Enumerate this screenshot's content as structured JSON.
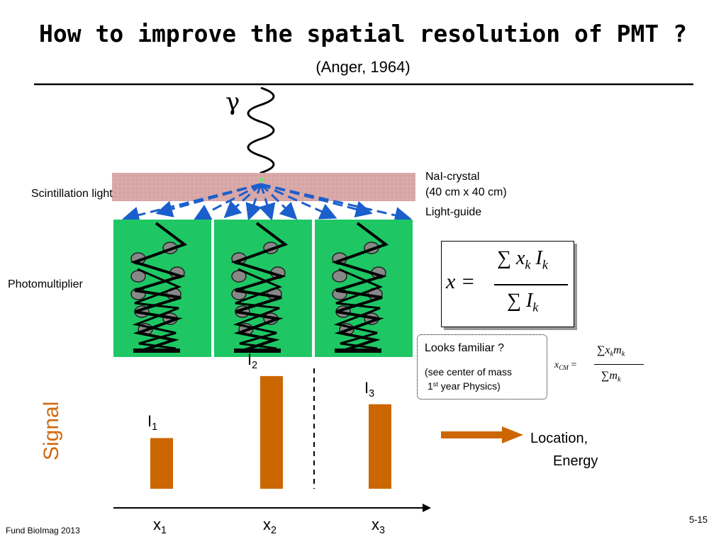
{
  "slide": {
    "title": "How to improve the spatial resolution of PMT ?",
    "subtitle": "(Anger, 1964)",
    "gamma_symbol": "γ",
    "labels": {
      "crystal_name": "NaI-crystal",
      "crystal_size": "(40 cm x 40 cm)",
      "light_guide": "Light-guide",
      "scintillation": "Scintillation light",
      "photomultiplier": "Photomultiplier",
      "signal": "Signal",
      "location": "Location,",
      "energy": "Energy"
    },
    "familiar": {
      "question": "Looks familiar ?",
      "note_line1": "(see center of mass",
      "note_line2_pre": "1",
      "note_line2_sup": "st",
      "note_line2_post": " year Physics)"
    },
    "formula_main": {
      "lhs": "x =",
      "numerator": "∑ x_k I_k",
      "denominator": "∑ I_k"
    },
    "formula_cm": {
      "lhs": "x_CM =",
      "numerator": "∑ x_k m_k",
      "denominator": "∑ m_k"
    },
    "footer": {
      "left": "Fund BioImag 2013",
      "right": "5-15"
    },
    "colors": {
      "pmt_green": "#1ec764",
      "bar_orange": "#cc6600",
      "signal_orange": "#d06a10",
      "crystal_pink": "#d9a8a8",
      "arrow_blue": "#1a5fcc"
    }
  },
  "chart_data": {
    "type": "bar",
    "categories": [
      "x1",
      "x2",
      "x3"
    ],
    "category_labels": [
      {
        "base": "x",
        "sub": "1"
      },
      {
        "base": "x",
        "sub": "2"
      },
      {
        "base": "x",
        "sub": "3"
      }
    ],
    "bar_labels": [
      {
        "base": "I",
        "sub": "1"
      },
      {
        "base": "I",
        "sub": "2"
      },
      {
        "base": "I",
        "sub": "3"
      }
    ],
    "values": [
      0.45,
      1.0,
      0.75
    ],
    "ylabel": "Signal",
    "ylim": [
      0,
      1.1
    ]
  }
}
